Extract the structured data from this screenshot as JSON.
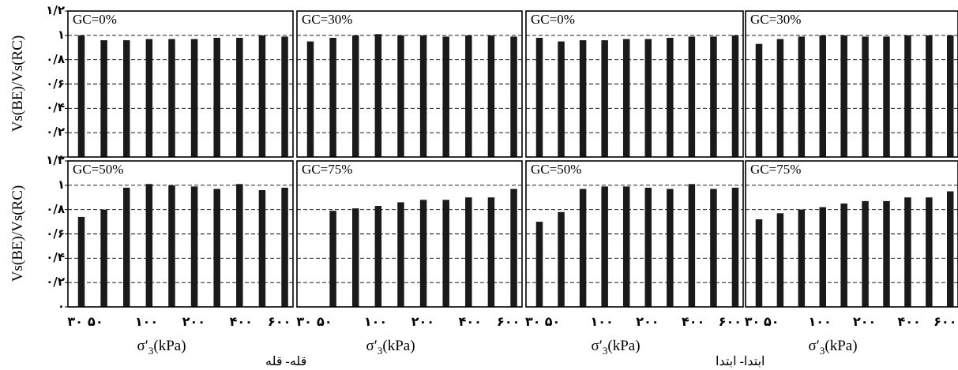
{
  "y_axis_label": "Vs(BE)/Vs(RC)",
  "y_tick_labels": [
    "۰",
    "۰/۲",
    "۰/۴",
    "۰/۶",
    "۰/۸",
    "۱",
    "۱/۲"
  ],
  "x_tick_labels": [
    "۳۰",
    "۵۰",
    "۱۰۰",
    "۲۰۰",
    "۴۰۰",
    "۶۰۰"
  ],
  "x_axis_label_main": "σ′",
  "x_axis_label_sub": "3",
  "x_axis_label_unit": "(kPa)",
  "captions": [
    "قله- قله",
    "ابتدا- ابتدا"
  ],
  "chart_data": [
    {
      "type": "bar",
      "title": "GC=0%",
      "ylim": [
        0,
        1.2
      ],
      "grid": "dashed horizontal",
      "values": [
        1.0,
        0.96,
        0.96,
        0.97,
        0.97,
        0.97,
        0.98,
        0.98,
        1.0,
        0.99
      ]
    },
    {
      "type": "bar",
      "title": "GC=30%",
      "ylim": [
        0,
        1.2
      ],
      "grid": "dashed horizontal",
      "values": [
        0.95,
        0.98,
        1.0,
        1.01,
        1.0,
        1.0,
        0.99,
        1.0,
        1.0,
        0.99
      ]
    },
    {
      "type": "bar",
      "title": "GC=0%",
      "ylim": [
        0,
        1.2
      ],
      "grid": "dashed horizontal",
      "values": [
        0.98,
        0.95,
        0.96,
        0.96,
        0.97,
        0.97,
        0.98,
        0.99,
        0.99,
        1.0
      ]
    },
    {
      "type": "bar",
      "title": "GC=30%",
      "ylim": [
        0,
        1.2
      ],
      "grid": "dashed horizontal",
      "values": [
        0.93,
        0.97,
        0.99,
        1.0,
        1.0,
        0.99,
        0.99,
        1.0,
        1.0,
        1.0
      ]
    },
    {
      "type": "bar",
      "title": "GC=50%",
      "ylim": [
        0,
        1.2
      ],
      "grid": "dashed horizontal",
      "values": [
        0.74,
        0.8,
        0.98,
        1.01,
        1.0,
        0.99,
        0.97,
        1.01,
        0.96,
        0.98
      ]
    },
    {
      "type": "bar",
      "title": "GC=75%",
      "ylim": [
        0,
        1.2
      ],
      "grid": "dashed horizontal",
      "values": [
        null,
        0.79,
        0.81,
        0.83,
        0.86,
        0.88,
        0.88,
        0.9,
        0.9,
        0.97
      ]
    },
    {
      "type": "bar",
      "title": "GC=50%",
      "ylim": [
        0,
        1.2
      ],
      "grid": "dashed horizontal",
      "values": [
        0.7,
        0.78,
        0.97,
        0.99,
        0.99,
        0.98,
        0.97,
        1.01,
        0.97,
        0.98
      ]
    },
    {
      "type": "bar",
      "title": "GC=75%",
      "ylim": [
        0,
        1.2
      ],
      "grid": "dashed horizontal",
      "values": [
        0.72,
        0.77,
        0.8,
        0.82,
        0.85,
        0.87,
        0.87,
        0.9,
        0.9,
        0.95
      ]
    }
  ]
}
